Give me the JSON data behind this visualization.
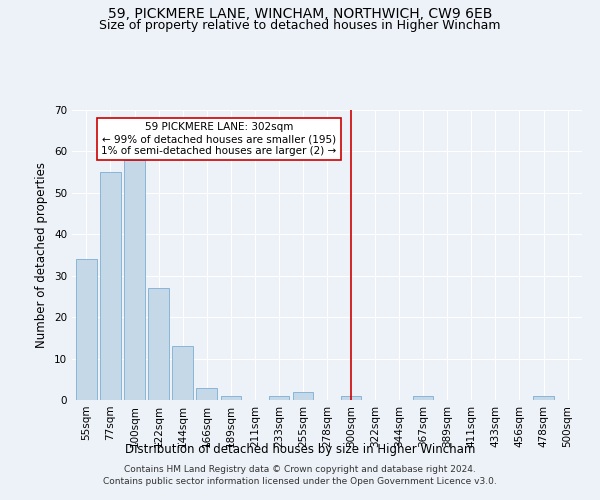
{
  "title": "59, PICKMERE LANE, WINCHAM, NORTHWICH, CW9 6EB",
  "subtitle": "Size of property relative to detached houses in Higher Wincham",
  "xlabel": "Distribution of detached houses by size in Higher Wincham",
  "ylabel": "Number of detached properties",
  "footnote1": "Contains HM Land Registry data © Crown copyright and database right 2024.",
  "footnote2": "Contains public sector information licensed under the Open Government Licence v3.0.",
  "categories": [
    "55sqm",
    "77sqm",
    "100sqm",
    "122sqm",
    "144sqm",
    "166sqm",
    "189sqm",
    "211sqm",
    "233sqm",
    "255sqm",
    "278sqm",
    "300sqm",
    "322sqm",
    "344sqm",
    "367sqm",
    "389sqm",
    "411sqm",
    "433sqm",
    "456sqm",
    "478sqm",
    "500sqm"
  ],
  "values": [
    34,
    55,
    58,
    27,
    13,
    3,
    1,
    0,
    1,
    2,
    0,
    1,
    0,
    0,
    1,
    0,
    0,
    0,
    0,
    1,
    0
  ],
  "bar_color": "#c5d8e8",
  "bar_edge_color": "#7bafd4",
  "highlight_index": 11,
  "highlight_line_color": "#cc0000",
  "annotation_line1": "59 PICKMERE LANE: 302sqm",
  "annotation_line2": "← 99% of detached houses are smaller (195)",
  "annotation_line3": "1% of semi-detached houses are larger (2) →",
  "annotation_box_color": "#ffffff",
  "annotation_box_edge": "#cc0000",
  "ylim": [
    0,
    70
  ],
  "yticks": [
    0,
    10,
    20,
    30,
    40,
    50,
    60,
    70
  ],
  "bg_color": "#edf2f8",
  "plot_bg_color": "#edf2f8",
  "grid_color": "#ffffff",
  "title_fontsize": 10,
  "subtitle_fontsize": 9,
  "axis_label_fontsize": 8.5,
  "tick_fontsize": 7.5,
  "annotation_fontsize": 7.5,
  "footnote_fontsize": 6.5
}
